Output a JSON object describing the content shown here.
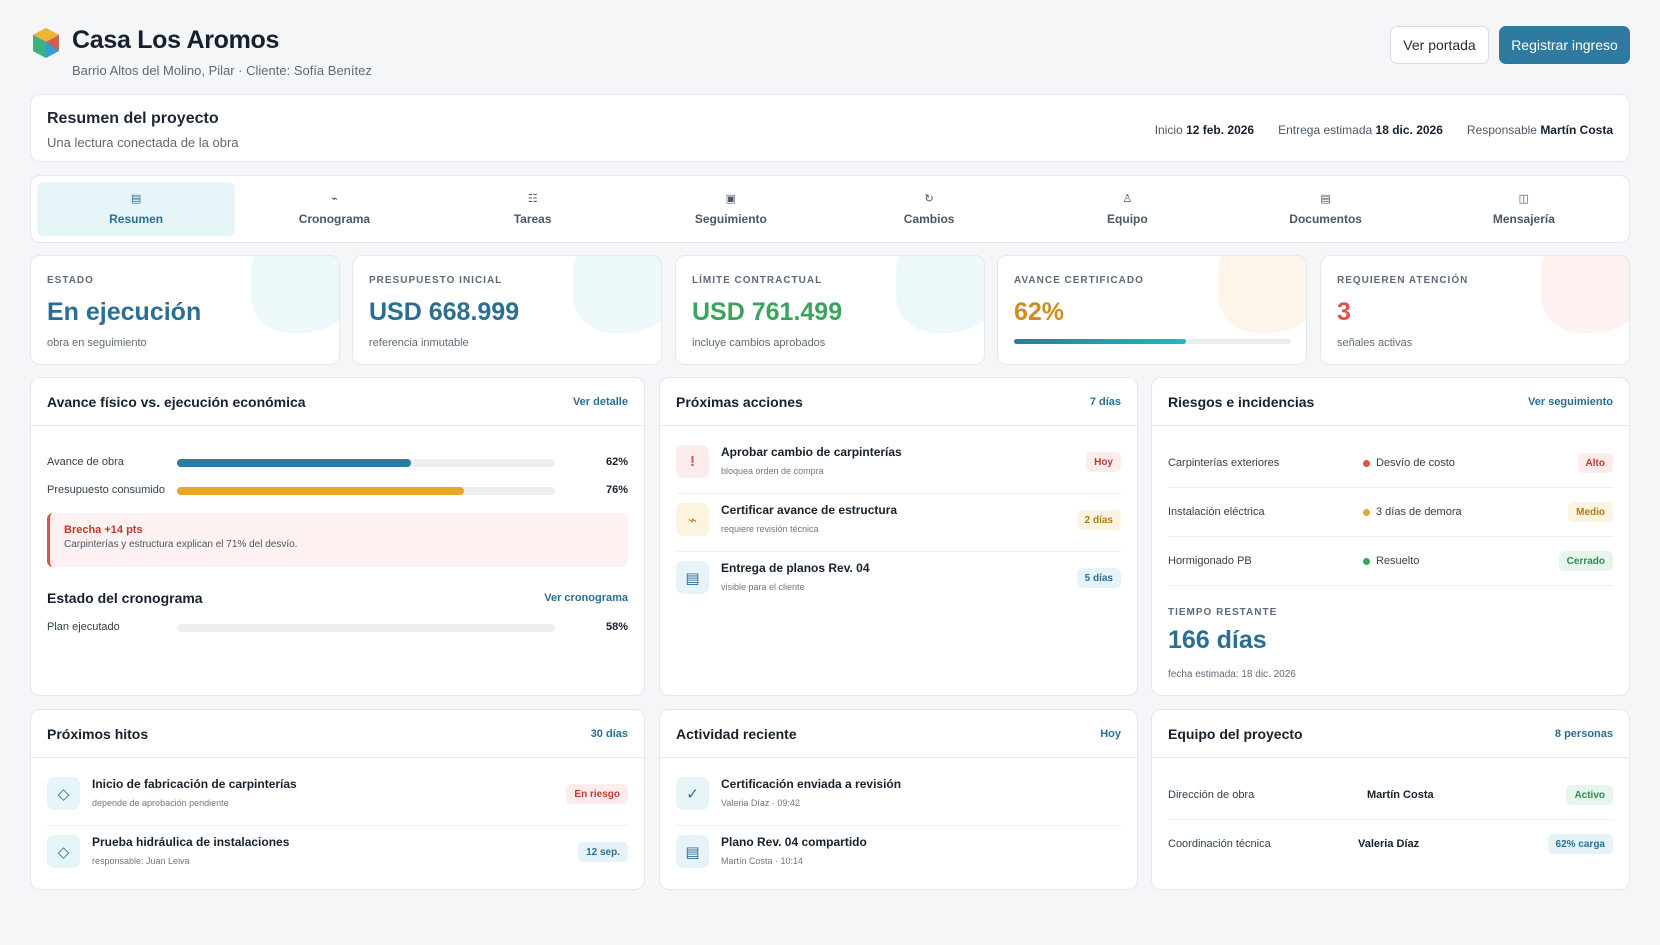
{
  "header": {
    "title": "Casa Los Aromos",
    "subtitle": "Barrio Altos del Molino, Pilar · Cliente: Sofía Benítez",
    "btn_portada": "Ver portada",
    "btn_registrar": "Registrar ingreso"
  },
  "summary": {
    "title": "Resumen del proyecto",
    "subtitle": "Una lectura conectada de la obra",
    "start_label": "Inicio",
    "start": "12 feb. 2026",
    "delivery_label": "Entrega estimada",
    "delivery": "18 dic. 2026",
    "owner_label": "Responsable",
    "owner": "Martín Costa"
  },
  "tabs": [
    {
      "label": "Resumen",
      "icon": "▤"
    },
    {
      "label": "Cronograma",
      "icon": "⌁"
    },
    {
      "label": "Tareas",
      "icon": "☷"
    },
    {
      "label": "Seguimiento",
      "icon": "▣"
    },
    {
      "label": "Cambios",
      "icon": "↻"
    },
    {
      "label": "Equipo",
      "icon": "♙"
    },
    {
      "label": "Documentos",
      "icon": "▤"
    },
    {
      "label": "Mensajería",
      "icon": "◫"
    }
  ],
  "kpis": [
    {
      "label": "ESTADO",
      "value": "En ejecución",
      "foot": "obra en seguimiento",
      "color": "#2a6f93",
      "blob": "#e6f5f8"
    },
    {
      "label": "PRESUPUESTO INICIAL",
      "value": "USD 668.999",
      "foot": "referencia inmutable",
      "color": "#2a6f93",
      "blob": "#e6f5f8"
    },
    {
      "label": "LÍMITE CONTRACTUAL",
      "value": "USD 761.499",
      "foot": "incluye cambios aprobados",
      "color": "#3aa35c",
      "blob": "#e6f5f8"
    },
    {
      "label": "AVANCE CERTIFICADO",
      "value": "62%",
      "progress": 62,
      "color": "#d28b1e",
      "blob": "#fdf1e3"
    },
    {
      "label": "REQUIEREN ATENCIÓN",
      "value": "3",
      "foot": "señales activas",
      "color": "#d9534f",
      "blob": "#fdecea"
    }
  ],
  "avance": {
    "title": "Avance físico vs. ejecución económica",
    "link": "Ver detalle",
    "rows": [
      {
        "label": "Avance de obra",
        "value": 62,
        "pct": "62%",
        "color": "#2e7aa0"
      },
      {
        "label": "Presupuesto consumido",
        "value": 76,
        "pct": "76%",
        "color": "#eaa52b"
      }
    ],
    "alert_title": "Brecha +14 pts",
    "alert_text": "Carpinterías y estructura explican el 71% del desvío.",
    "crono_title": "Estado del cronograma",
    "crono_link": "Ver cronograma",
    "plan_label": "Plan ejecutado",
    "plan_value": 58,
    "plan_pct": "58%"
  },
  "acciones": {
    "title": "Próximas acciones",
    "link": "7 días",
    "items": [
      {
        "title": "Aprobar cambio de carpinterías",
        "sub": "bloquea orden de compra",
        "badge": "Hoy",
        "icon": "!"
      },
      {
        "title": "Certificar avance de estructura",
        "sub": "requiere revisión técnica",
        "badge": "2 días",
        "icon": "⌁"
      },
      {
        "title": "Entrega de planos Rev. 04",
        "sub": "visible para el cliente",
        "badge": "5 días",
        "icon": "▤"
      }
    ]
  },
  "riesgos": {
    "title": "Riesgos e incidencias",
    "link": "Ver seguimiento",
    "items": [
      {
        "name": "Carpinterías exteriores",
        "status": "Desvío de costo",
        "badge": "Alto",
        "color": "#d9534f"
      },
      {
        "name": "Instalación eléctrica",
        "status": "3 días de demora",
        "badge": "Medio",
        "color": "#e3a73a"
      },
      {
        "name": "Hormigonado PB",
        "status": "Resuelto",
        "badge": "Cerrado",
        "color": "#3aa35c"
      }
    ],
    "remaining_label": "TIEMPO RESTANTE",
    "remaining": "166 días",
    "remaining_foot": "fecha estimada: 18 dic. 2026"
  },
  "hitos": {
    "title": "Próximos hitos",
    "link": "30 días",
    "items": [
      {
        "title": "Inicio de fabricación de carpinterías",
        "sub": "depende de aprobación pendiente",
        "badge": "En riesgo",
        "icon": "◇"
      },
      {
        "title": "Prueba hidráulica de instalaciones",
        "sub": "responsable: Juan Leiva",
        "badge": "12 sep.",
        "icon": "◇"
      }
    ]
  },
  "actividad": {
    "title": "Actividad reciente",
    "link": "Hoy",
    "items": [
      {
        "title": "Certificación enviada a revisión",
        "sub": "Valeria Díaz · 09:42",
        "icon": "✓"
      },
      {
        "title": "Plano Rev. 04 compartido",
        "sub": "Martín Costa · 10:14",
        "icon": "▤"
      }
    ]
  },
  "equipo": {
    "title": "Equipo del proyecto",
    "link": "8 personas",
    "items": [
      {
        "role": "Dirección de obra",
        "name": "Martín Costa",
        "badge": "Activo"
      },
      {
        "role": "Coordinación técnica",
        "name": "Valeria Díaz",
        "badge": "62% carga"
      }
    ]
  }
}
